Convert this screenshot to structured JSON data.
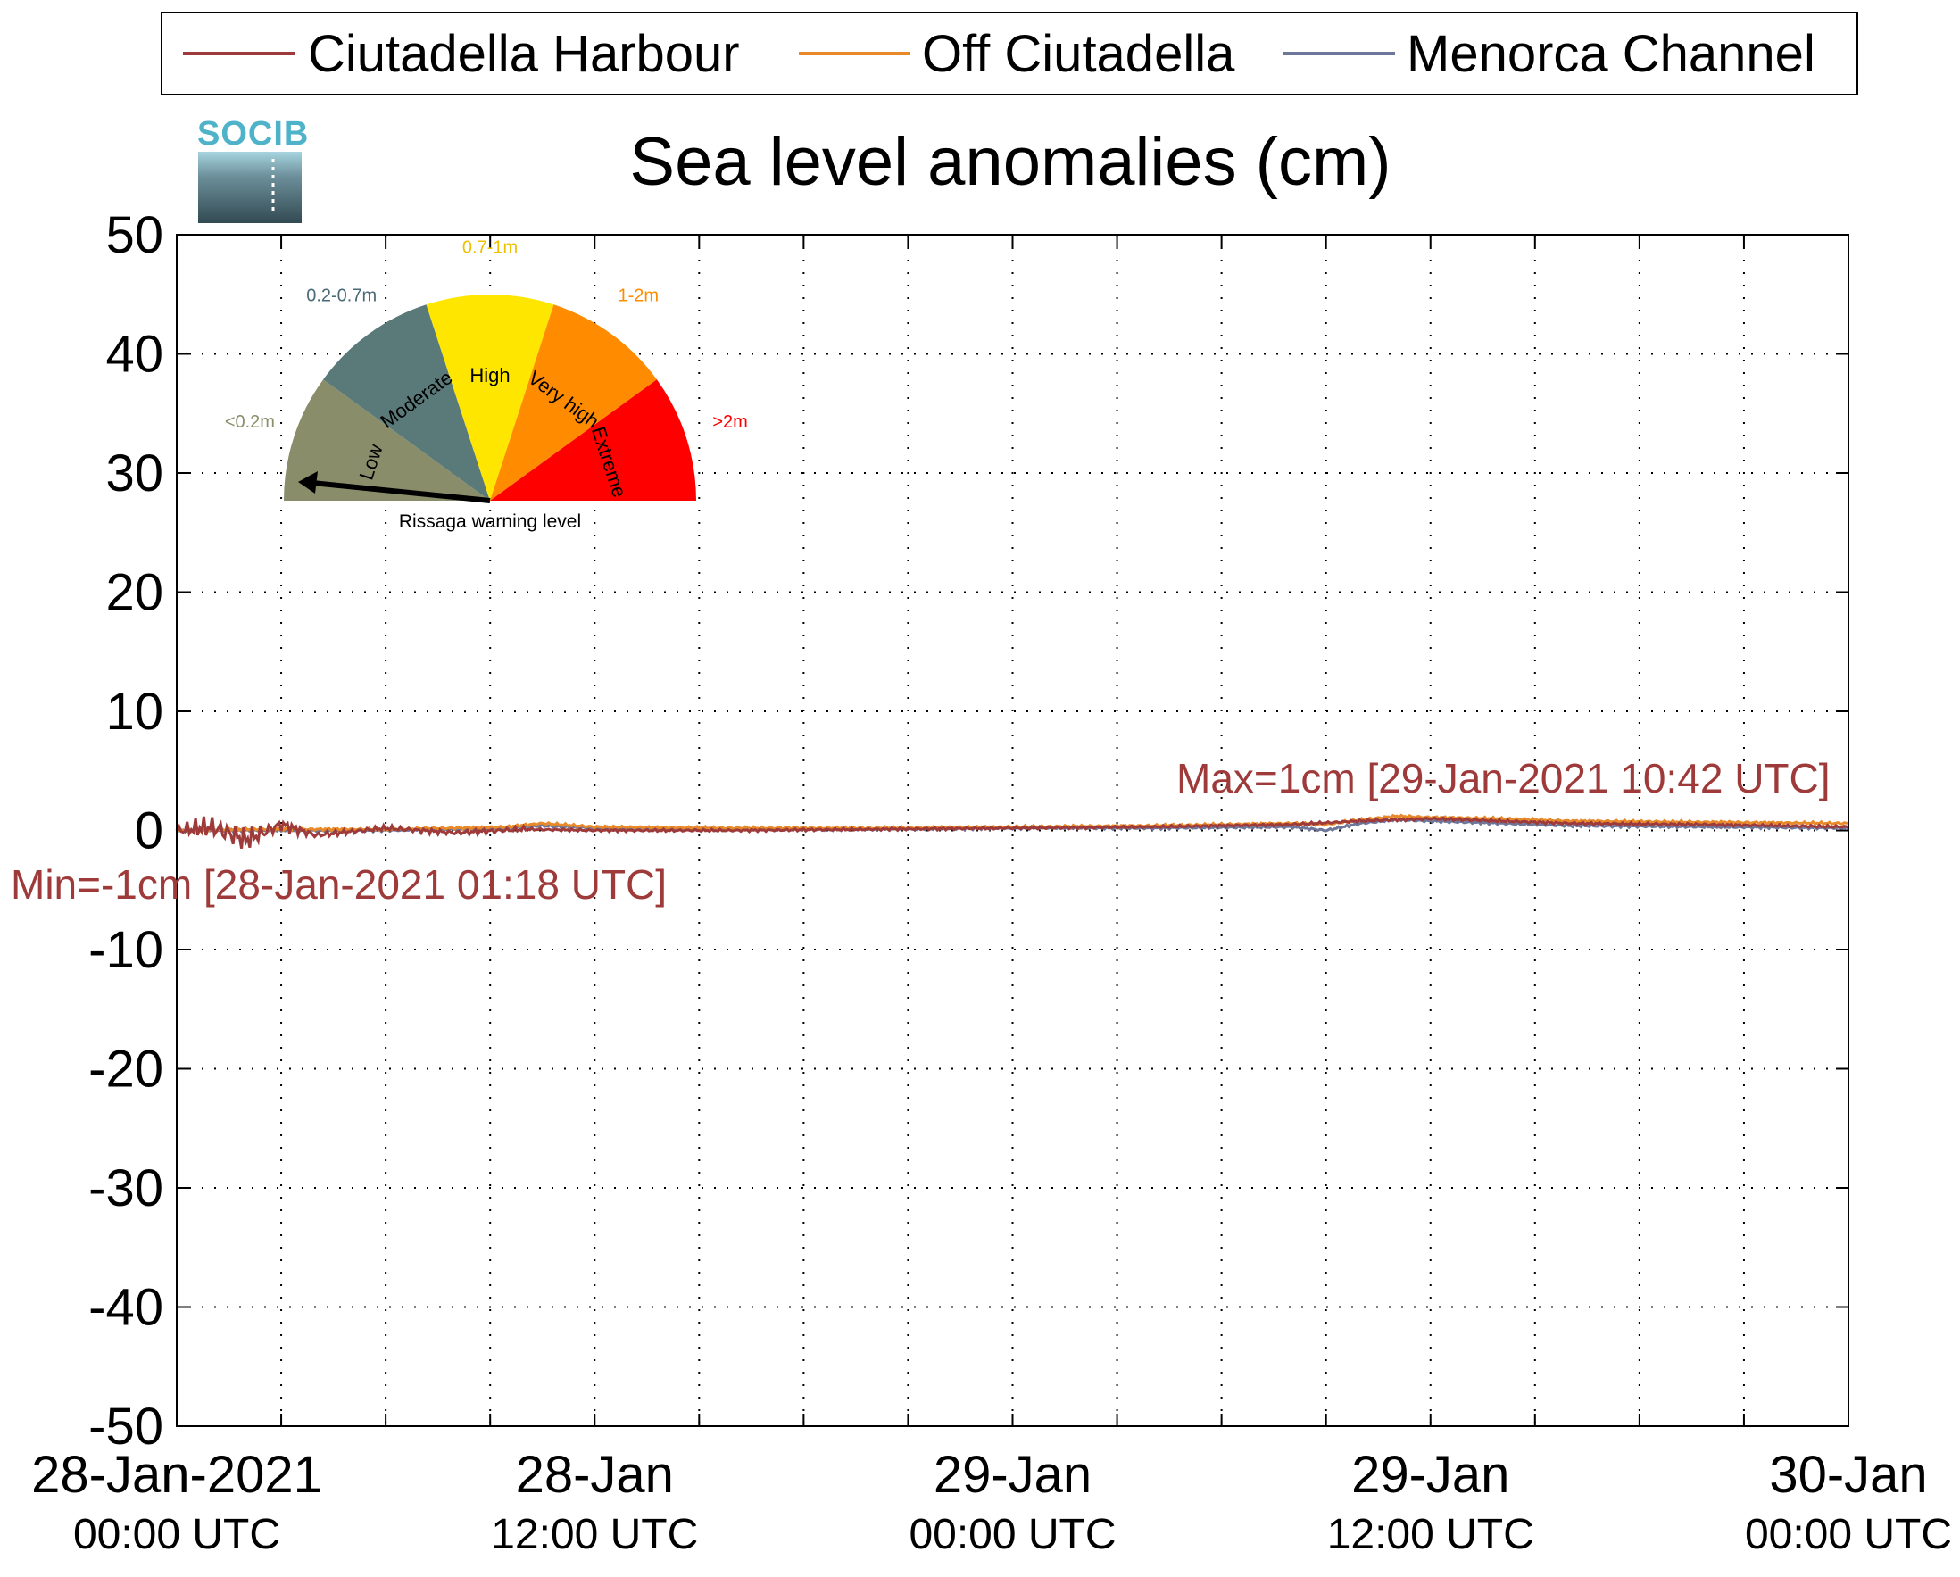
{
  "chart_data": {
    "type": "line",
    "title": "Sea level anomalies (cm)",
    "xlabel": "",
    "ylabel": "",
    "ylim": [
      -50,
      50
    ],
    "yticks": [
      50,
      40,
      30,
      20,
      10,
      0,
      -10,
      -20,
      -30,
      -40,
      -50
    ],
    "xlim_hours": [
      0,
      48
    ],
    "xtick_labels": [
      {
        "hour": 0,
        "line1": "28-Jan-2021",
        "line2": "00:00 UTC"
      },
      {
        "hour": 12,
        "line1": "28-Jan",
        "line2": "12:00 UTC"
      },
      {
        "hour": 24,
        "line1": "29-Jan",
        "line2": "00:00 UTC"
      },
      {
        "hour": 36,
        "line1": "29-Jan",
        "line2": "12:00 UTC"
      },
      {
        "hour": 48,
        "line1": "30-Jan",
        "line2": "00:00 UTC"
      }
    ],
    "grid": true,
    "legend_position": "top",
    "series": [
      {
        "name": "Ciutadella Harbour",
        "color": "#9e3a3a",
        "x_hours": [
          0,
          1,
          2,
          3,
          4,
          6,
          8,
          10,
          12,
          16,
          20,
          24,
          28,
          32,
          34,
          36,
          38,
          40,
          44,
          48
        ],
        "values": [
          0,
          0.3,
          -0.8,
          0.5,
          -0.4,
          0.2,
          -0.2,
          0.1,
          0,
          0,
          0.1,
          0.2,
          0.3,
          0.5,
          0.8,
          1,
          0.8,
          0.6,
          0.5,
          0.3
        ]
      },
      {
        "name": "Off Ciutadella",
        "color": "#e8892a",
        "x_hours": [
          0,
          2,
          4,
          6,
          8,
          9.5,
          10.5,
          12,
          16,
          20,
          24,
          28,
          32,
          33,
          34,
          35,
          36,
          38,
          40,
          44,
          48
        ],
        "values": [
          0,
          0.1,
          0.1,
          0.1,
          0.2,
          0.3,
          0.6,
          0.3,
          0.2,
          0.2,
          0.3,
          0.4,
          0.6,
          0.5,
          0.9,
          1.2,
          1.1,
          1,
          0.8,
          0.7,
          0.6
        ]
      },
      {
        "name": "Menorca Channel",
        "color": "#6e7699",
        "x_hours": [
          0,
          2,
          4,
          6,
          8,
          9.5,
          10.5,
          12,
          16,
          20,
          24,
          28,
          32,
          33,
          34,
          35,
          36,
          38,
          40,
          44,
          48
        ],
        "values": [
          0,
          0,
          0,
          0,
          0.1,
          0.2,
          0.4,
          0.2,
          0.1,
          0.1,
          0.2,
          0.2,
          0.3,
          0,
          0.6,
          0.9,
          0.8,
          0.6,
          0.4,
          0.3,
          0.2
        ]
      }
    ],
    "annotations": [
      {
        "text": "Max=1cm [29-Jan-2021 10:42 UTC]",
        "color": "#9e3a3a"
      },
      {
        "text": "Min=-1cm [28-Jan-2021 01:18 UTC]",
        "color": "#9e3a3a"
      }
    ]
  },
  "logo": {
    "text": "SOCIB",
    "color": "#4eb3c9"
  },
  "gauge": {
    "caption": "Rissaga warning level",
    "needle_level": "Low",
    "segments": [
      {
        "label": "Low",
        "range": "<0.2m",
        "color": "#8a8d6a",
        "range_color": "#8a8d6a"
      },
      {
        "label": "Moderate",
        "range": "0.2-0.7m",
        "color": "#5a7a79",
        "range_color": "#4a6a78"
      },
      {
        "label": "High",
        "range": "0.7-1m",
        "color": "#ffe600",
        "range_color": "#f0c000"
      },
      {
        "label": "Very high",
        "range": "1-2m",
        "color": "#ff8c00",
        "range_color": "#ff8c00"
      },
      {
        "label": "Extreme",
        "range": ">2m",
        "color": "#ff0000",
        "range_color": "#ff0000"
      }
    ]
  }
}
